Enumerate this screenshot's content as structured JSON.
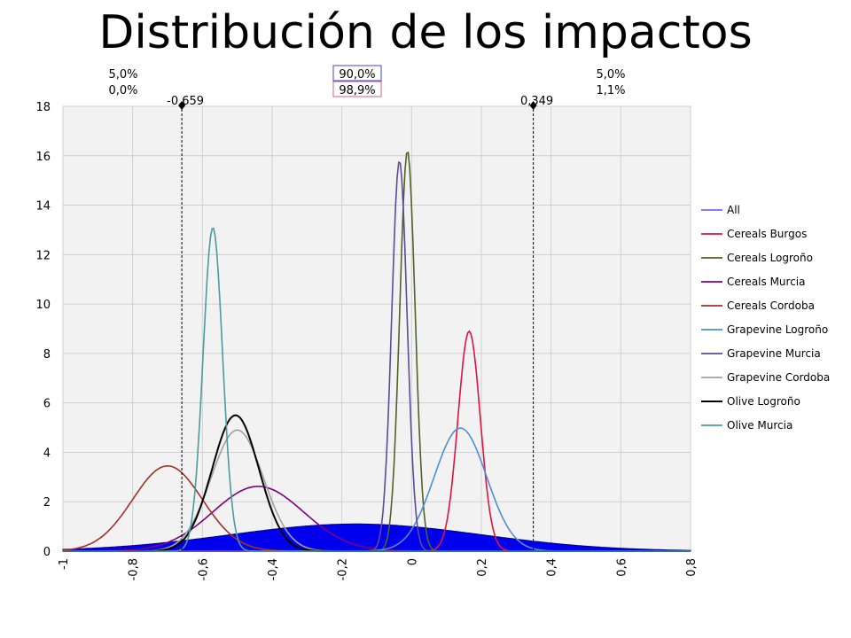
{
  "chart_data": {
    "type": "line",
    "title": "Distribución de los impactos",
    "xlim": [
      -1,
      0.8
    ],
    "ylim": [
      0,
      18
    ],
    "x_ticks": [
      -1,
      -0.8,
      -0.6,
      -0.4,
      -0.2,
      0,
      0.2,
      0.4,
      0.6,
      0.8
    ],
    "x_tick_labels": [
      "-1",
      "-0,8",
      "-0,6",
      "-0,4",
      "-0,2",
      "0",
      "0,2",
      "0,4",
      "0,6",
      "0,8"
    ],
    "y_ticks": [
      0,
      2,
      4,
      6,
      8,
      10,
      12,
      14,
      16,
      18
    ],
    "y_tick_labels": [
      "0",
      "2",
      "4",
      "6",
      "8",
      "10",
      "12",
      "14",
      "16",
      "18"
    ],
    "grid": true,
    "legend": "right",
    "markers": {
      "left": {
        "x": -0.659,
        "label": "-0,659"
      },
      "right": {
        "x": 0.349,
        "label": "0,349"
      }
    },
    "percentages": {
      "left": [
        "5,0%",
        "0,0%"
      ],
      "center": [
        "90,0%",
        "98,9%"
      ],
      "right": [
        "5,0%",
        "1,1%"
      ]
    },
    "series": [
      {
        "name": "All",
        "color": "#0000ee",
        "fill": true,
        "mean": -0.16,
        "sd": 0.36,
        "peak": 1.1
      },
      {
        "name": "Cereals Burgos",
        "color": "#dc143c",
        "mean": 0.165,
        "sd": 0.032,
        "peak": 8.9
      },
      {
        "name": "Cereals Logroño",
        "color": "#4f6228",
        "mean": -0.012,
        "sd": 0.022,
        "peak": 16.2
      },
      {
        "name": "Cereals Murcia",
        "color": "#7f007f",
        "mean": -0.44,
        "sd": 0.13,
        "peak": 2.62
      },
      {
        "name": "Cereals Cordoba",
        "color": "#a0302a",
        "mean": -0.7,
        "sd": 0.1,
        "peak": 3.45
      },
      {
        "name": "Grapevine Logroño",
        "color": "#4f8fd0",
        "mean": 0.14,
        "sd": 0.075,
        "peak": 4.98
      },
      {
        "name": "Grapevine Murcia",
        "color": "#5b4a9a",
        "mean": -0.035,
        "sd": 0.022,
        "peak": 15.8
      },
      {
        "name": "Grapevine Cordoba",
        "color": "#a0a0a0",
        "mean": -0.5,
        "sd": 0.075,
        "peak": 4.9
      },
      {
        "name": "Olive Logroño",
        "color": "#000000",
        "mean": -0.505,
        "sd": 0.067,
        "peak": 5.5
      },
      {
        "name": "Olive Murcia",
        "color": "#4a9aa0",
        "mean": -0.57,
        "sd": 0.028,
        "peak": 13.1
      }
    ]
  }
}
